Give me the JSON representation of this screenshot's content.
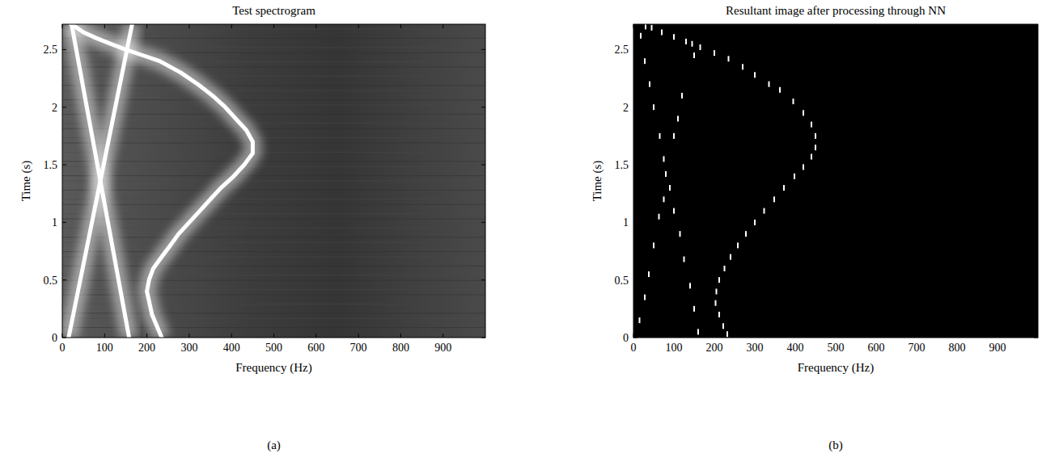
{
  "chart_data": [
    {
      "type": "line",
      "title": "Test spectrogram",
      "x_label": "Frequency (Hz)",
      "y_label": "Time (s)",
      "annotation": "(a)",
      "xlim": [
        0,
        1000
      ],
      "ylim": [
        0,
        2.72
      ],
      "xticks": [
        0,
        100,
        200,
        300,
        400,
        500,
        600,
        700,
        800,
        900
      ],
      "yticks": [
        0,
        0.5,
        1,
        1.5,
        2,
        2.5
      ],
      "series": [
        {
          "color": "#ffffff",
          "x": [
            15,
            165
          ],
          "values": [
            0,
            2.72
          ]
        },
        {
          "color": "#ffffff",
          "x": [
            158,
            22
          ],
          "values": [
            0,
            2.72
          ]
        },
        {
          "color": "#ffffff",
          "x": [
            235,
            212,
            200,
            205,
            215,
            235,
            255,
            275,
            300,
            325,
            350,
            375,
            405,
            430,
            450,
            450,
            435,
            410,
            385,
            355,
            320,
            280,
            230,
            190,
            150,
            115,
            80,
            50,
            30,
            20
          ],
          "values": [
            0,
            0.2,
            0.4,
            0.5,
            0.6,
            0.7,
            0.8,
            0.9,
            1.0,
            1.1,
            1.2,
            1.3,
            1.4,
            1.5,
            1.6,
            1.7,
            1.8,
            1.9,
            2.0,
            2.1,
            2.2,
            2.3,
            2.4,
            2.45,
            2.5,
            2.55,
            2.6,
            2.65,
            2.7,
            2.72
          ]
        }
      ]
    },
    {
      "type": "scatter",
      "title": "Resultant image after processing through NN",
      "x_label": "Frequency (Hz)",
      "y_label": "Time (s)",
      "annotation": "(b)",
      "xlim": [
        0,
        1000
      ],
      "ylim": [
        0,
        2.72
      ],
      "xticks": [
        0,
        100,
        200,
        300,
        400,
        500,
        600,
        700,
        800,
        900
      ],
      "yticks": [
        0,
        0.5,
        1,
        1.5,
        2,
        2.5
      ],
      "series": [
        {
          "color": "#ffffff",
          "marker": "dash",
          "x": [
            15,
            28,
            38,
            50,
            63,
            75,
            80,
            100,
            110,
            120,
            150,
            145,
            160,
            150,
            140,
            125,
            115,
            100,
            90,
            75,
            65,
            50,
            40,
            28,
            18,
            30,
            232,
            222,
            212,
            203,
            205,
            212,
            225,
            240,
            258,
            278,
            300,
            323,
            348,
            372,
            398,
            420,
            440,
            450,
            450,
            440,
            420,
            395,
            362,
            335,
            300,
            270,
            235,
            200,
            165,
            130,
            100,
            70,
            45
          ],
          "values": [
            0.15,
            0.35,
            0.55,
            0.8,
            1.05,
            1.2,
            1.42,
            1.75,
            1.9,
            2.1,
            2.45,
            2.55,
            0.05,
            0.25,
            0.45,
            0.68,
            0.9,
            1.1,
            1.3,
            1.55,
            1.75,
            2.0,
            2.2,
            2.4,
            2.62,
            2.7,
            0.03,
            0.1,
            0.2,
            0.3,
            0.4,
            0.5,
            0.6,
            0.7,
            0.8,
            0.9,
            1.0,
            1.1,
            1.2,
            1.3,
            1.4,
            1.48,
            1.57,
            1.65,
            1.75,
            1.85,
            1.95,
            2.05,
            2.15,
            2.2,
            2.28,
            2.35,
            2.42,
            2.47,
            2.52,
            2.57,
            2.61,
            2.65,
            2.69
          ]
        }
      ]
    }
  ]
}
